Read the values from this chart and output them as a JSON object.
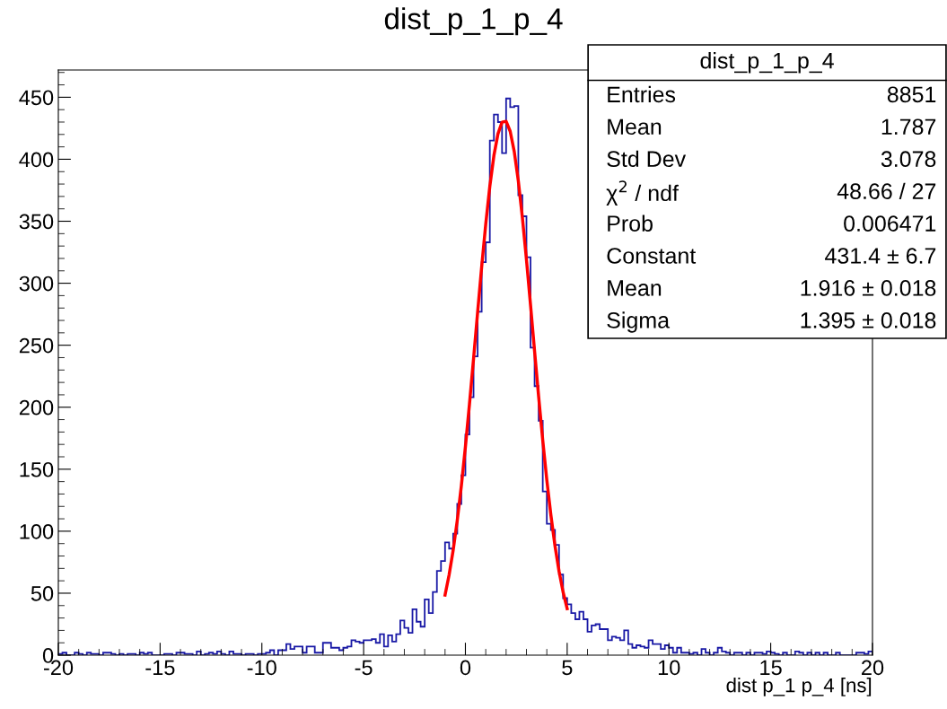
{
  "chart_data": {
    "type": "histogram",
    "title": "dist_p_1_p_4",
    "xlabel": "dist p_1 p_4 [ns]",
    "bins": [
      -20,
      -19.8,
      -19.6,
      -19.4,
      -19.2,
      -19,
      -18.8,
      -18.6,
      -18.4,
      -18.2,
      -18,
      -17.8,
      -17.6,
      -17.4,
      -17.2,
      -17,
      -16.8,
      -16.6,
      -16.4,
      -16.2,
      -16,
      -15.8,
      -15.6,
      -15.4,
      -15.2,
      -15,
      -14.8,
      -14.6,
      -14.4,
      -14.2,
      -14,
      -13.8,
      -13.6,
      -13.4,
      -13.2,
      -13,
      -12.8,
      -12.6,
      -12.4,
      -12.2,
      -12,
      -11.8,
      -11.6,
      -11.4,
      -11.2,
      -11,
      -10.8,
      -10.6,
      -10.4,
      -10.2,
      -10,
      -9.8,
      -9.6,
      -9.4,
      -9.2,
      -9,
      -8.8,
      -8.6,
      -8.4,
      -8.2,
      -8,
      -7.8,
      -7.6,
      -7.4,
      -7.2,
      -7,
      -6.8,
      -6.6,
      -6.4,
      -6.2,
      -6,
      -5.8,
      -5.6,
      -5.4,
      -5.2,
      -5,
      -4.8,
      -4.6,
      -4.4,
      -4.2,
      -4,
      -3.8,
      -3.6,
      -3.4,
      -3.2,
      -3,
      -2.8,
      -2.6,
      -2.4,
      -2.2,
      -2,
      -1.8,
      -1.6,
      -1.4,
      -1.2,
      -1,
      -0.8,
      -0.6,
      -0.4,
      -0.2,
      0,
      0.2,
      0.4,
      0.6,
      0.8,
      1,
      1.2,
      1.4,
      1.6,
      1.8,
      2,
      2.2,
      2.4,
      2.6,
      2.8,
      3,
      3.2,
      3.4,
      3.6,
      3.8,
      4,
      4.2,
      4.4,
      4.6,
      4.8,
      5,
      5.2,
      5.4,
      5.6,
      5.8,
      6,
      6.2,
      6.4,
      6.6,
      6.8,
      7,
      7.2,
      7.4,
      7.6,
      7.8,
      8,
      8.2,
      8.4,
      8.6,
      8.8,
      9,
      9.2,
      9.4,
      9.6,
      9.8,
      10,
      10.2,
      10.4,
      10.6,
      10.8,
      11,
      11.2,
      11.4,
      11.6,
      11.8,
      12,
      12.2,
      12.4,
      12.6,
      12.8,
      13,
      13.2,
      13.4,
      13.6,
      13.8,
      14,
      14.2,
      14.4,
      14.6,
      14.8,
      15,
      15.2,
      15.4,
      15.6,
      15.8,
      16,
      16.2,
      16.4,
      16.6,
      16.8,
      17,
      17.2,
      17.4,
      17.6,
      17.8,
      18,
      18.2,
      18.4,
      18.6,
      18.8,
      19,
      19.2,
      19.4,
      19.6,
      19.8,
      20
    ],
    "series": [
      {
        "color": "#1a1aa6",
        "values": [
          1,
          2,
          0,
          0,
          2,
          1,
          0,
          2,
          1,
          1,
          0,
          2,
          2,
          1,
          0,
          1,
          0,
          1,
          1,
          0,
          2,
          1,
          2,
          0,
          0,
          0,
          1,
          1,
          0,
          2,
          2,
          1,
          1,
          0,
          3,
          0,
          1,
          2,
          1,
          3,
          1,
          0,
          3,
          1,
          1,
          0,
          1,
          1,
          0,
          1,
          1,
          2,
          4,
          0,
          4,
          4,
          9,
          5,
          7,
          7,
          2,
          7,
          7,
          2,
          2,
          10,
          10,
          6,
          6,
          4,
          6,
          7,
          12,
          11,
          10,
          12,
          12,
          13,
          10,
          17,
          7,
          16,
          11,
          17,
          28,
          22,
          18,
          37,
          27,
          23,
          45,
          34,
          51,
          68,
          76,
          91,
          86,
          98,
          122,
          145,
          178,
          208,
          241,
          277,
          317,
          333,
          415,
          436,
          430,
          405,
          449,
          442,
          443,
          371,
          354,
          321,
          248,
          217,
          189,
          132,
          106,
          101,
          89,
          65,
          46,
          41,
          34,
          29,
          35,
          29,
          19,
          24,
          25,
          21,
          21,
          12,
          15,
          14,
          12,
          20,
          9,
          6,
          8,
          7,
          6,
          12,
          9,
          9,
          5,
          8,
          6,
          2,
          6,
          2,
          2,
          1,
          2,
          0,
          5,
          2,
          0,
          2,
          6,
          3,
          2,
          0,
          2,
          2,
          0,
          2,
          0,
          2,
          2,
          1,
          3,
          2,
          1,
          0,
          2,
          0,
          0,
          3,
          2,
          0,
          2,
          0,
          2,
          0,
          2,
          0,
          0,
          2,
          0,
          0,
          0,
          0,
          2,
          2,
          1,
          3
        ]
      },
      {
        "type": "line",
        "color": "#ff0000",
        "x": [
          -1,
          -0.8,
          -0.6,
          -0.4,
          -0.2,
          0,
          0.2,
          0.4,
          0.6,
          0.8,
          1,
          1.2,
          1.4,
          1.6,
          1.8,
          2,
          2.2,
          2.4,
          2.6,
          2.8,
          3,
          3.2,
          3.4,
          3.6,
          3.8,
          4,
          4.2,
          4.4,
          4.6,
          4.8,
          5
        ],
        "values": [
          48.5,
          64.8,
          84.8,
          108.7,
          136.5,
          168.0,
          202.5,
          239.0,
          276.4,
          313.3,
          347.7,
          378.2,
          402.9,
          420.5,
          429.9,
          430.6,
          422.6,
          406.2,
          382.5,
          352.9,
          319.0,
          282.4,
          245.0,
          208.2,
          173.3,
          141.3,
          112.9,
          88.4,
          67.8,
          50.9,
          37.5
        ]
      }
    ],
    "xlim": [
      -20,
      20
    ],
    "xticks": [
      -20,
      -15,
      -10,
      -5,
      0,
      5,
      10,
      15,
      20
    ],
    "ylim": [
      0,
      472
    ],
    "yticks": [
      0,
      50,
      100,
      150,
      200,
      250,
      300,
      350,
      400,
      450
    ],
    "grid": false,
    "legend": false,
    "annotations": [
      "dist_p_1_p_4",
      "Entries",
      "8851",
      "Mean",
      "1.787",
      "Std Dev",
      "3.078",
      "χ$^{2}$ / ndf",
      "48.66 / 27",
      "Prob",
      "0.006471",
      "Constant",
      "431.4 ± 6.7",
      "Mean",
      "1.916 ± 0.018",
      "Sigma",
      "1.395 ± 0.018"
    ]
  }
}
